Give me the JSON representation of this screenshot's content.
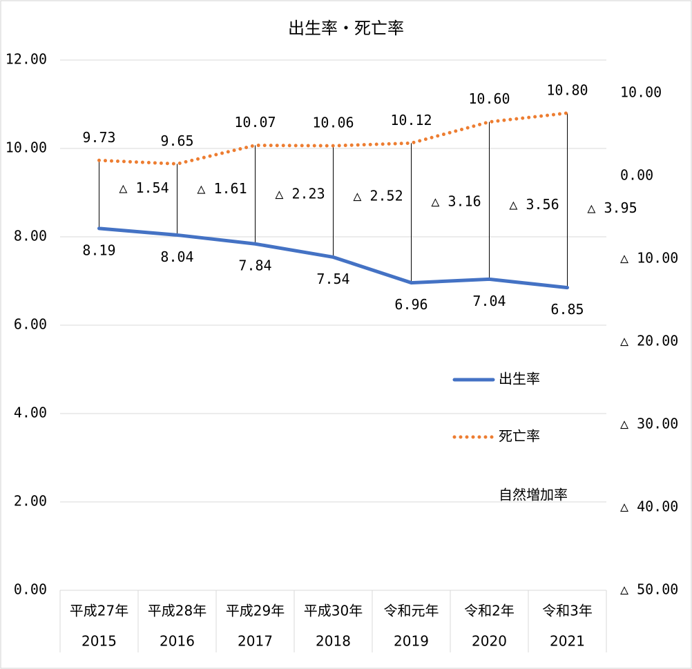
{
  "chart_data": {
    "type": "line",
    "title": "出生率・死亡率",
    "categories": [
      [
        "平成27年",
        "2015"
      ],
      [
        "平成28年",
        "2016"
      ],
      [
        "平成29年",
        "2017"
      ],
      [
        "平成30年",
        "2018"
      ],
      [
        "令和元年",
        "2019"
      ],
      [
        "令和2年",
        "2020"
      ],
      [
        "令和3年",
        "2021"
      ]
    ],
    "series": [
      {
        "name": "出生率",
        "color": "#4472C4",
        "values": [
          8.19,
          8.04,
          7.84,
          7.54,
          6.96,
          7.04,
          6.85
        ]
      },
      {
        "name": "死亡率",
        "color": "#ED7D31",
        "line_style": "dotted",
        "values": [
          9.73,
          9.65,
          10.07,
          10.06,
          10.12,
          10.6,
          10.8
        ],
        "value_labels": [
          "9.73",
          "9.65",
          "10.07",
          "10.06",
          "10.12",
          "10.60",
          "10.80"
        ]
      },
      {
        "name": "自然増加率",
        "axis": "y2",
        "values": [
          -1.54,
          -1.61,
          -2.23,
          -2.52,
          -3.16,
          -3.56,
          -3.95
        ],
        "value_labels": [
          "△ 1.54",
          "△ 1.61",
          "△ 2.23",
          "△ 2.52",
          "△ 3.16",
          "△ 3.56",
          "△ 3.95"
        ]
      }
    ],
    "drop_lines": true,
    "ylim": [
      0,
      12
    ],
    "yticks": [
      {
        "value": 0,
        "label": "0.00"
      },
      {
        "value": 2,
        "label": "2.00"
      },
      {
        "value": 4,
        "label": "4.00"
      },
      {
        "value": 6,
        "label": "6.00"
      },
      {
        "value": 8,
        "label": "8.00"
      },
      {
        "value": 10,
        "label": "10.00"
      },
      {
        "value": 12,
        "label": "12.00"
      }
    ],
    "y2lim": [
      -50,
      14
    ],
    "y2ticks": [
      {
        "value": 10,
        "label": "10.00"
      },
      {
        "value": 0,
        "label": "0.00"
      },
      {
        "value": -10,
        "label": "△ 10.00"
      },
      {
        "value": -20,
        "label": "△ 20.00"
      },
      {
        "value": -30,
        "label": "△ 30.00"
      },
      {
        "value": -40,
        "label": "△ 40.00"
      },
      {
        "value": -50,
        "label": "△ 50.00"
      }
    ],
    "grid": true,
    "legend": "right"
  }
}
